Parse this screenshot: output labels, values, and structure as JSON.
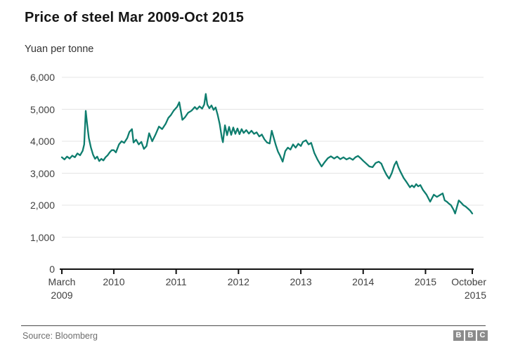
{
  "header": {
    "title": "Price of steel Mar 2009-Oct 2015",
    "subtitle": "Yuan per tonne"
  },
  "footer": {
    "source": "Source: Bloomberg",
    "logo_letters": [
      "B",
      "B",
      "C"
    ]
  },
  "colors": {
    "line": "#0e7d6e",
    "gridline": "#e4e4e4",
    "axis": "#111111",
    "tick_text": "#404040"
  },
  "chart_data": {
    "type": "line",
    "title": "Price of steel Mar 2009-Oct 2015",
    "ylabel": "Yuan per tonne",
    "unit": "yuan per tonne",
    "grid": "horizontal",
    "legend": false,
    "ylim": [
      0,
      6000
    ],
    "y_tick_values": [
      0,
      1000,
      2000,
      3000,
      4000,
      5000,
      6000
    ],
    "y_tick_labels": [
      "0",
      "1,000",
      "2,000",
      "3,000",
      "4,000",
      "5,000",
      "6,000"
    ],
    "x_unit": "months since March 2009",
    "xlim_months": [
      0,
      79
    ],
    "x_start_label": "March 2009",
    "x_end_label": "October 2015",
    "x_tick_months": [
      0,
      10,
      22,
      34,
      46,
      58,
      70,
      79
    ],
    "x_tick_labels": [
      "March\n2009",
      "2010",
      "2011",
      "2012",
      "2013",
      "2014",
      "2015",
      "October\n2015"
    ],
    "series": [
      {
        "name": "Price of steel (yuan per tonne)",
        "points": [
          [
            0,
            3500
          ],
          [
            0.5,
            3430
          ],
          [
            1,
            3520
          ],
          [
            1.5,
            3460
          ],
          [
            2,
            3550
          ],
          [
            2.5,
            3500
          ],
          [
            3,
            3620
          ],
          [
            3.5,
            3560
          ],
          [
            4,
            3700
          ],
          [
            4.3,
            3900
          ],
          [
            4.6,
            4950
          ],
          [
            4.9,
            4500
          ],
          [
            5.2,
            4100
          ],
          [
            5.6,
            3800
          ],
          [
            6,
            3580
          ],
          [
            6.4,
            3450
          ],
          [
            6.8,
            3520
          ],
          [
            7.2,
            3380
          ],
          [
            7.6,
            3450
          ],
          [
            8,
            3400
          ],
          [
            8.4,
            3500
          ],
          [
            8.8,
            3560
          ],
          [
            9.2,
            3650
          ],
          [
            9.6,
            3720
          ],
          [
            10,
            3720
          ],
          [
            10.4,
            3650
          ],
          [
            11,
            3900
          ],
          [
            11.5,
            4000
          ],
          [
            12,
            3950
          ],
          [
            12.6,
            4100
          ],
          [
            13,
            4290
          ],
          [
            13.5,
            4380
          ],
          [
            13.8,
            3960
          ],
          [
            14.3,
            4050
          ],
          [
            14.8,
            3900
          ],
          [
            15.3,
            3980
          ],
          [
            15.8,
            3760
          ],
          [
            16.3,
            3850
          ],
          [
            16.8,
            4250
          ],
          [
            17.4,
            4000
          ],
          [
            18,
            4200
          ],
          [
            18.7,
            4460
          ],
          [
            19.3,
            4380
          ],
          [
            20,
            4550
          ],
          [
            20.5,
            4730
          ],
          [
            21,
            4820
          ],
          [
            21.5,
            4950
          ],
          [
            22.2,
            5080
          ],
          [
            22.6,
            5220
          ],
          [
            23.2,
            4670
          ],
          [
            23.7,
            4750
          ],
          [
            24.3,
            4890
          ],
          [
            25,
            4960
          ],
          [
            25.6,
            5070
          ],
          [
            26,
            5000
          ],
          [
            26.5,
            5090
          ],
          [
            27,
            5020
          ],
          [
            27.4,
            5150
          ],
          [
            27.7,
            5480
          ],
          [
            28,
            5150
          ],
          [
            28.4,
            5030
          ],
          [
            28.8,
            5120
          ],
          [
            29.2,
            4980
          ],
          [
            29.6,
            5060
          ],
          [
            30,
            4820
          ],
          [
            30.4,
            4530
          ],
          [
            30.8,
            4100
          ],
          [
            31,
            3970
          ],
          [
            31.4,
            4500
          ],
          [
            31.8,
            4190
          ],
          [
            32.2,
            4450
          ],
          [
            32.6,
            4200
          ],
          [
            33,
            4430
          ],
          [
            33.4,
            4230
          ],
          [
            33.8,
            4400
          ],
          [
            34.2,
            4220
          ],
          [
            34.6,
            4380
          ],
          [
            35,
            4260
          ],
          [
            35.5,
            4350
          ],
          [
            36,
            4240
          ],
          [
            36.5,
            4330
          ],
          [
            37,
            4230
          ],
          [
            37.5,
            4280
          ],
          [
            38,
            4150
          ],
          [
            38.5,
            4210
          ],
          [
            39,
            4060
          ],
          [
            39.5,
            3960
          ],
          [
            40,
            3930
          ],
          [
            40.4,
            4330
          ],
          [
            40.8,
            4100
          ],
          [
            41.2,
            3870
          ],
          [
            41.6,
            3680
          ],
          [
            42,
            3550
          ],
          [
            42.5,
            3360
          ],
          [
            43,
            3690
          ],
          [
            43.5,
            3800
          ],
          [
            44,
            3740
          ],
          [
            44.5,
            3900
          ],
          [
            45,
            3800
          ],
          [
            45.5,
            3920
          ],
          [
            46,
            3850
          ],
          [
            46.4,
            3980
          ],
          [
            47,
            4030
          ],
          [
            47.5,
            3900
          ],
          [
            48,
            3950
          ],
          [
            48.6,
            3630
          ],
          [
            49.2,
            3430
          ],
          [
            50,
            3210
          ],
          [
            50.6,
            3350
          ],
          [
            51.2,
            3470
          ],
          [
            51.8,
            3530
          ],
          [
            52.4,
            3460
          ],
          [
            53,
            3520
          ],
          [
            53.6,
            3440
          ],
          [
            54.2,
            3500
          ],
          [
            54.8,
            3430
          ],
          [
            55.4,
            3480
          ],
          [
            56,
            3420
          ],
          [
            56.5,
            3500
          ],
          [
            57,
            3540
          ],
          [
            57.5,
            3470
          ],
          [
            58,
            3390
          ],
          [
            58.6,
            3300
          ],
          [
            59.2,
            3210
          ],
          [
            59.8,
            3190
          ],
          [
            60.4,
            3320
          ],
          [
            61,
            3360
          ],
          [
            61.5,
            3300
          ],
          [
            62,
            3110
          ],
          [
            62.5,
            2950
          ],
          [
            63,
            2830
          ],
          [
            63.5,
            3000
          ],
          [
            64,
            3250
          ],
          [
            64.4,
            3370
          ],
          [
            64.8,
            3180
          ],
          [
            65.2,
            3040
          ],
          [
            65.8,
            2850
          ],
          [
            66.4,
            2710
          ],
          [
            67,
            2560
          ],
          [
            67.4,
            2620
          ],
          [
            67.8,
            2560
          ],
          [
            68.2,
            2660
          ],
          [
            68.6,
            2590
          ],
          [
            69,
            2630
          ],
          [
            69.5,
            2480
          ],
          [
            70.2,
            2330
          ],
          [
            70.9,
            2110
          ],
          [
            71.6,
            2330
          ],
          [
            72.2,
            2260
          ],
          [
            72.9,
            2330
          ],
          [
            73.3,
            2370
          ],
          [
            73.7,
            2150
          ],
          [
            74.1,
            2110
          ],
          [
            74.5,
            2050
          ],
          [
            74.9,
            2000
          ],
          [
            75.4,
            1860
          ],
          [
            75.7,
            1740
          ],
          [
            76.4,
            2150
          ],
          [
            76.9,
            2070
          ],
          [
            77.3,
            2000
          ],
          [
            77.7,
            1960
          ],
          [
            78.2,
            1890
          ],
          [
            78.6,
            1830
          ],
          [
            79,
            1740
          ]
        ]
      }
    ]
  }
}
